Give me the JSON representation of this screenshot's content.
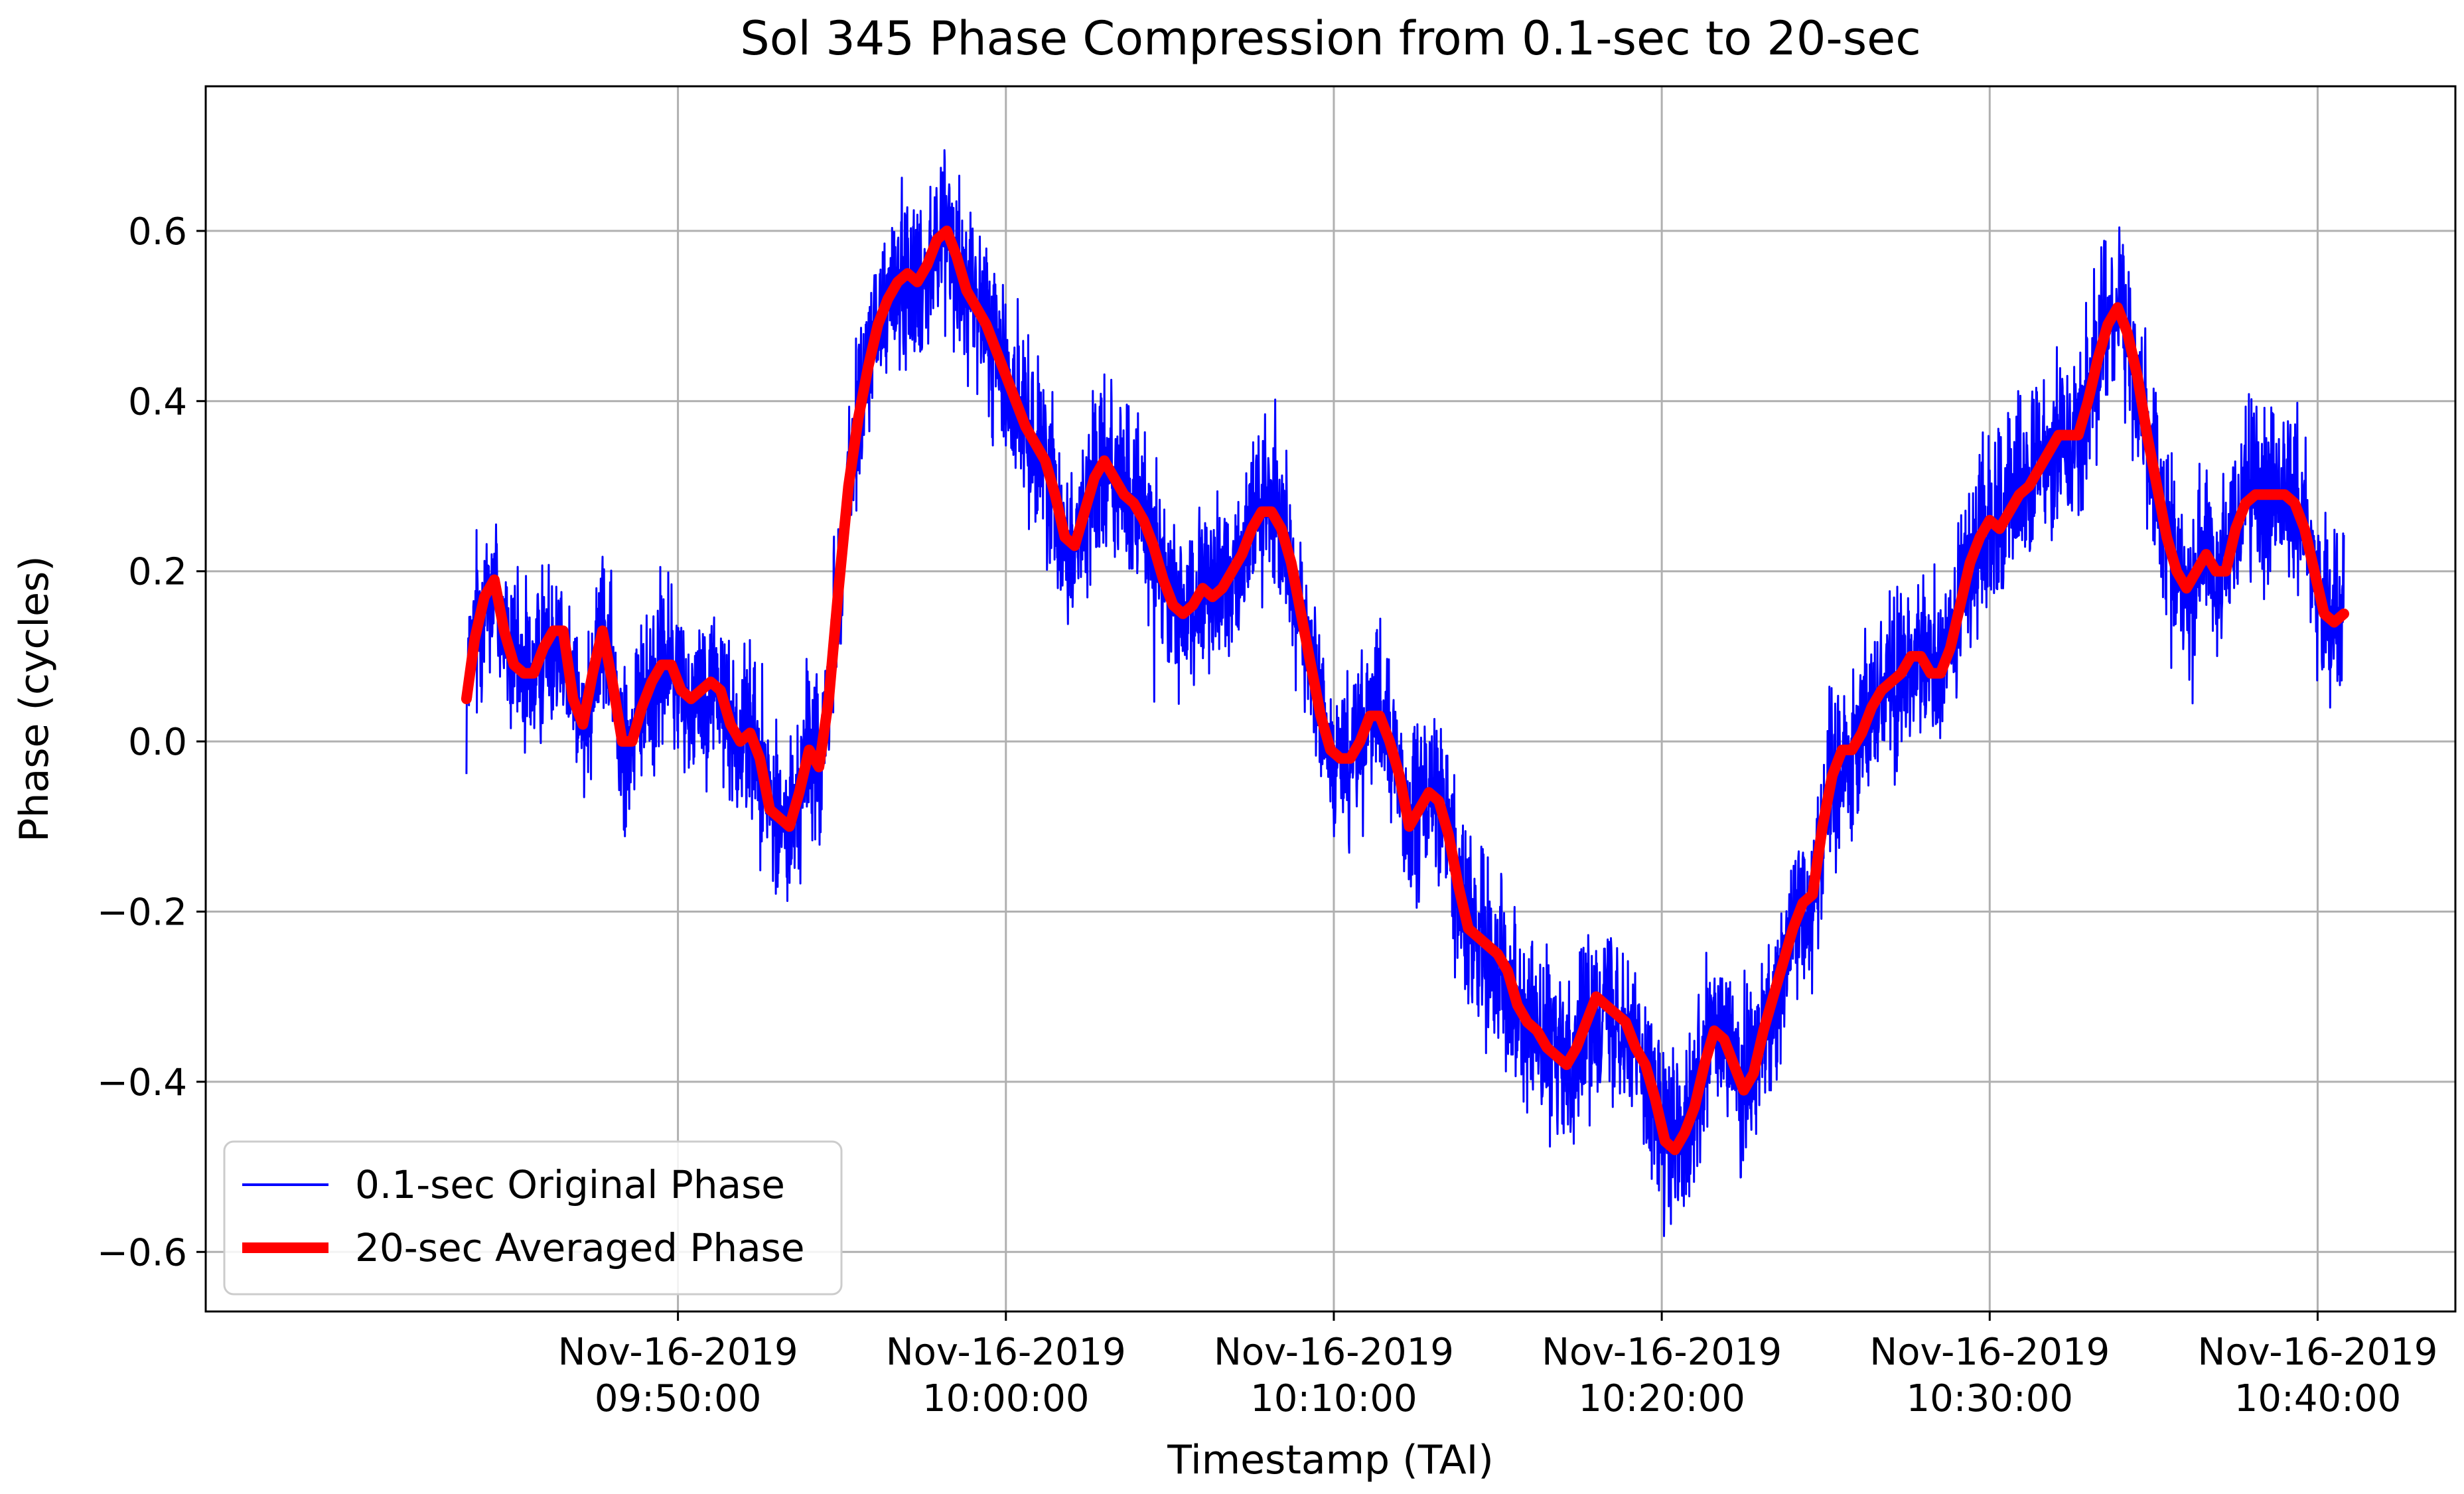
{
  "chart_data": {
    "type": "line",
    "title": "Sol 345 Phase Compression from 0.1-sec to 20-sec",
    "xlabel": "Timestamp (TAI)",
    "ylabel": "Phase (cycles)",
    "xlim_minutes": [
      -14.4,
      54.2
    ],
    "x_unit": "minutes after Nov-16-2019 09:50:00",
    "ylim": [
      -0.67,
      0.77
    ],
    "grid": true,
    "legend_position": "lower-left",
    "x_ticks": [
      {
        "value": 0,
        "date": "Nov-16-2019",
        "time": "09:50:00"
      },
      {
        "value": 10,
        "date": "Nov-16-2019",
        "time": "10:00:00"
      },
      {
        "value": 20,
        "date": "Nov-16-2019",
        "time": "10:10:00"
      },
      {
        "value": 30,
        "date": "Nov-16-2019",
        "time": "10:20:00"
      },
      {
        "value": 40,
        "date": "Nov-16-2019",
        "time": "10:30:00"
      },
      {
        "value": 50,
        "date": "Nov-16-2019",
        "time": "10:40:00"
      }
    ],
    "y_ticks": [
      {
        "value": 0.6,
        "label": "0.6"
      },
      {
        "value": 0.4,
        "label": "0.4"
      },
      {
        "value": 0.2,
        "label": "0.2"
      },
      {
        "value": 0.0,
        "label": "0.0"
      },
      {
        "value": -0.2,
        "label": "−0.2"
      },
      {
        "value": -0.4,
        "label": "−0.4"
      },
      {
        "value": -0.6,
        "label": "−0.6"
      }
    ],
    "series": [
      {
        "name": "0.1-sec Original Phase",
        "color": "#0000ff",
        "noise_amplitude": 0.08,
        "sample_interval_sec": 0.1,
        "note": "high-rate noisy phase following the averaged curve"
      },
      {
        "name": "20-sec Averaged Phase",
        "color": "#ff0000",
        "points": [
          [
            -6.45,
            0.05
          ],
          [
            -6.2,
            0.12
          ],
          [
            -5.9,
            0.17
          ],
          [
            -5.6,
            0.19
          ],
          [
            -5.3,
            0.13
          ],
          [
            -5.0,
            0.09
          ],
          [
            -4.7,
            0.08
          ],
          [
            -4.4,
            0.08
          ],
          [
            -4.1,
            0.11
          ],
          [
            -3.8,
            0.13
          ],
          [
            -3.5,
            0.13
          ],
          [
            -3.2,
            0.05
          ],
          [
            -2.9,
            0.02
          ],
          [
            -2.6,
            0.08
          ],
          [
            -2.3,
            0.13
          ],
          [
            -2.0,
            0.07
          ],
          [
            -1.7,
            0.0
          ],
          [
            -1.4,
            0.0
          ],
          [
            -1.1,
            0.04
          ],
          [
            -0.8,
            0.07
          ],
          [
            -0.5,
            0.09
          ],
          [
            -0.2,
            0.09
          ],
          [
            0.1,
            0.06
          ],
          [
            0.4,
            0.05
          ],
          [
            0.7,
            0.06
          ],
          [
            1.0,
            0.07
          ],
          [
            1.3,
            0.06
          ],
          [
            1.6,
            0.02
          ],
          [
            1.9,
            0.0
          ],
          [
            2.2,
            0.01
          ],
          [
            2.5,
            -0.02
          ],
          [
            2.8,
            -0.08
          ],
          [
            3.1,
            -0.09
          ],
          [
            3.4,
            -0.1
          ],
          [
            3.7,
            -0.06
          ],
          [
            4.0,
            -0.01
          ],
          [
            4.3,
            -0.03
          ],
          [
            4.6,
            0.05
          ],
          [
            4.9,
            0.18
          ],
          [
            5.2,
            0.3
          ],
          [
            5.5,
            0.38
          ],
          [
            5.8,
            0.44
          ],
          [
            6.1,
            0.49
          ],
          [
            6.4,
            0.52
          ],
          [
            6.7,
            0.54
          ],
          [
            7.0,
            0.55
          ],
          [
            7.3,
            0.54
          ],
          [
            7.6,
            0.56
          ],
          [
            7.9,
            0.59
          ],
          [
            8.2,
            0.6
          ],
          [
            8.5,
            0.57
          ],
          [
            8.8,
            0.53
          ],
          [
            9.1,
            0.51
          ],
          [
            9.4,
            0.49
          ],
          [
            9.7,
            0.46
          ],
          [
            10.0,
            0.43
          ],
          [
            10.3,
            0.4
          ],
          [
            10.6,
            0.37
          ],
          [
            10.9,
            0.35
          ],
          [
            11.2,
            0.33
          ],
          [
            11.5,
            0.29
          ],
          [
            11.8,
            0.24
          ],
          [
            12.1,
            0.23
          ],
          [
            12.4,
            0.27
          ],
          [
            12.7,
            0.31
          ],
          [
            13.0,
            0.33
          ],
          [
            13.3,
            0.31
          ],
          [
            13.6,
            0.29
          ],
          [
            13.9,
            0.28
          ],
          [
            14.2,
            0.26
          ],
          [
            14.5,
            0.23
          ],
          [
            14.8,
            0.19
          ],
          [
            15.1,
            0.16
          ],
          [
            15.4,
            0.15
          ],
          [
            15.7,
            0.16
          ],
          [
            16.0,
            0.18
          ],
          [
            16.3,
            0.17
          ],
          [
            16.6,
            0.18
          ],
          [
            16.9,
            0.2
          ],
          [
            17.2,
            0.22
          ],
          [
            17.5,
            0.25
          ],
          [
            17.8,
            0.27
          ],
          [
            18.1,
            0.27
          ],
          [
            18.4,
            0.25
          ],
          [
            18.7,
            0.21
          ],
          [
            19.0,
            0.15
          ],
          [
            19.3,
            0.09
          ],
          [
            19.6,
            0.03
          ],
          [
            19.9,
            -0.01
          ],
          [
            20.2,
            -0.02
          ],
          [
            20.5,
            -0.02
          ],
          [
            20.8,
            0.0
          ],
          [
            21.1,
            0.03
          ],
          [
            21.4,
            0.03
          ],
          [
            21.7,
            0.0
          ],
          [
            22.0,
            -0.04
          ],
          [
            22.3,
            -0.1
          ],
          [
            22.6,
            -0.08
          ],
          [
            22.9,
            -0.06
          ],
          [
            23.2,
            -0.07
          ],
          [
            23.5,
            -0.11
          ],
          [
            23.8,
            -0.17
          ],
          [
            24.1,
            -0.22
          ],
          [
            24.4,
            -0.23
          ],
          [
            24.7,
            -0.24
          ],
          [
            25.0,
            -0.25
          ],
          [
            25.3,
            -0.27
          ],
          [
            25.6,
            -0.31
          ],
          [
            25.9,
            -0.33
          ],
          [
            26.2,
            -0.34
          ],
          [
            26.5,
            -0.36
          ],
          [
            26.8,
            -0.37
          ],
          [
            27.1,
            -0.38
          ],
          [
            27.4,
            -0.36
          ],
          [
            27.7,
            -0.33
          ],
          [
            28.0,
            -0.3
          ],
          [
            28.3,
            -0.31
          ],
          [
            28.6,
            -0.32
          ],
          [
            28.9,
            -0.33
          ],
          [
            29.2,
            -0.36
          ],
          [
            29.5,
            -0.38
          ],
          [
            29.8,
            -0.42
          ],
          [
            30.1,
            -0.47
          ],
          [
            30.4,
            -0.48
          ],
          [
            30.7,
            -0.46
          ],
          [
            31.0,
            -0.43
          ],
          [
            31.3,
            -0.38
          ],
          [
            31.6,
            -0.34
          ],
          [
            31.9,
            -0.35
          ],
          [
            32.2,
            -0.38
          ],
          [
            32.5,
            -0.41
          ],
          [
            32.8,
            -0.39
          ],
          [
            33.1,
            -0.34
          ],
          [
            33.4,
            -0.3
          ],
          [
            33.7,
            -0.26
          ],
          [
            34.0,
            -0.22
          ],
          [
            34.3,
            -0.19
          ],
          [
            34.6,
            -0.18
          ],
          [
            34.9,
            -0.1
          ],
          [
            35.2,
            -0.04
          ],
          [
            35.5,
            -0.01
          ],
          [
            35.8,
            -0.01
          ],
          [
            36.1,
            0.01
          ],
          [
            36.4,
            0.04
          ],
          [
            36.7,
            0.06
          ],
          [
            37.0,
            0.07
          ],
          [
            37.3,
            0.08
          ],
          [
            37.6,
            0.1
          ],
          [
            37.9,
            0.1
          ],
          [
            38.2,
            0.08
          ],
          [
            38.5,
            0.08
          ],
          [
            38.8,
            0.11
          ],
          [
            39.1,
            0.16
          ],
          [
            39.4,
            0.21
          ],
          [
            39.7,
            0.24
          ],
          [
            40.0,
            0.26
          ],
          [
            40.3,
            0.25
          ],
          [
            40.6,
            0.27
          ],
          [
            40.9,
            0.29
          ],
          [
            41.2,
            0.3
          ],
          [
            41.5,
            0.32
          ],
          [
            41.8,
            0.34
          ],
          [
            42.1,
            0.36
          ],
          [
            42.4,
            0.36
          ],
          [
            42.7,
            0.36
          ],
          [
            43.0,
            0.4
          ],
          [
            43.3,
            0.45
          ],
          [
            43.6,
            0.49
          ],
          [
            43.9,
            0.51
          ],
          [
            44.2,
            0.48
          ],
          [
            44.5,
            0.43
          ],
          [
            44.8,
            0.36
          ],
          [
            45.1,
            0.3
          ],
          [
            45.4,
            0.24
          ],
          [
            45.7,
            0.2
          ],
          [
            46.0,
            0.18
          ],
          [
            46.3,
            0.2
          ],
          [
            46.6,
            0.22
          ],
          [
            46.9,
            0.2
          ],
          [
            47.2,
            0.2
          ],
          [
            47.5,
            0.25
          ],
          [
            47.8,
            0.28
          ],
          [
            48.1,
            0.29
          ],
          [
            48.4,
            0.29
          ],
          [
            48.7,
            0.29
          ],
          [
            49.0,
            0.29
          ],
          [
            49.3,
            0.28
          ],
          [
            49.6,
            0.25
          ],
          [
            49.9,
            0.2
          ],
          [
            50.2,
            0.15
          ],
          [
            50.5,
            0.14
          ],
          [
            50.8,
            0.15
          ]
        ]
      }
    ]
  }
}
